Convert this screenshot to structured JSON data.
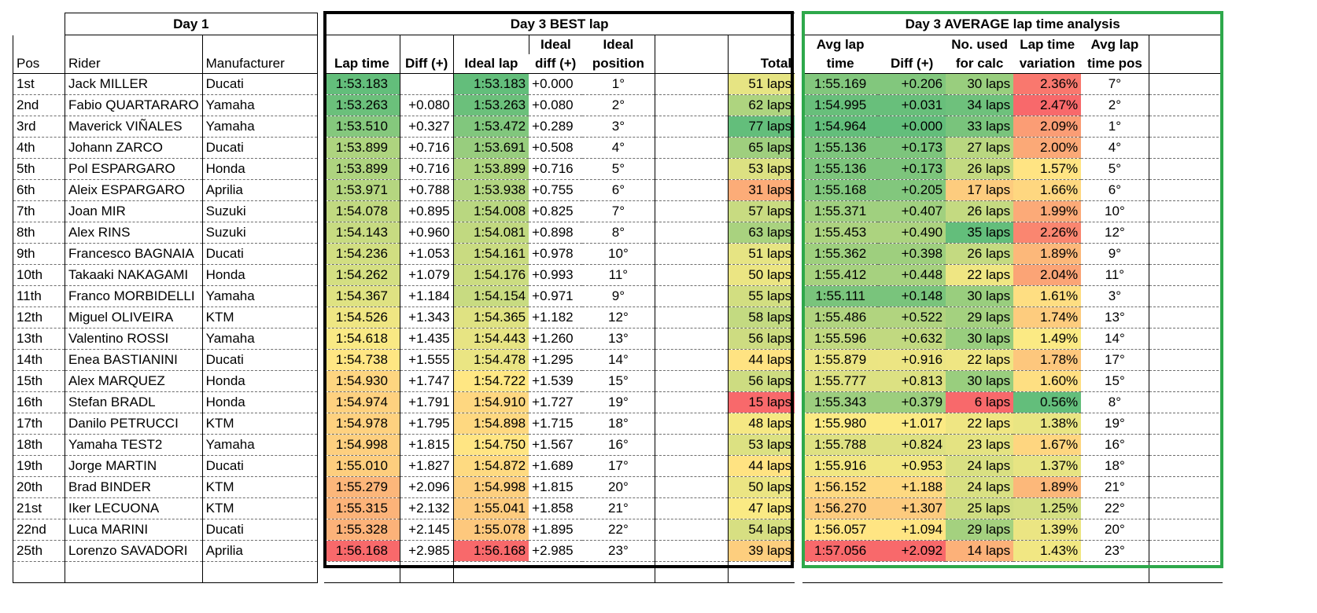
{
  "headers": {
    "day1": "Day 1",
    "best": "Day 3 BEST lap",
    "avg": "Day 3 AVERAGE lap time analysis",
    "pos": "Pos",
    "rider": "Rider",
    "manufacturer": "Manufacturer",
    "lap_time": "Lap time",
    "diff": "Diff (+)",
    "ideal_lap": "Ideal lap",
    "ideal_diff_1": "Ideal",
    "ideal_diff_2": "diff (+)",
    "ideal_pos_1": "Ideal",
    "ideal_pos_2": "position",
    "total": "Total",
    "avg_lap_1": "Avg lap",
    "avg_lap_2": "time",
    "avg_diff": "Diff (+)",
    "used_1": "No. used",
    "used_2": "for calc",
    "var_1": "Lap time",
    "var_2": "variation",
    "avgpos_1": "Avg lap",
    "avgpos_2": "time pos"
  },
  "rows": [
    {
      "pos": "1st",
      "rider": "Jack MILLER",
      "manufacturer": "Ducati",
      "lap_time": "1:53.183",
      "diff": "",
      "ideal_lap": "1:53.183",
      "ideal_diff": "+0.000",
      "ideal_pos": "1°",
      "total": "51 laps",
      "avg_lap": "1:55.169",
      "avg_diff": "+0.206",
      "used": "30 laps",
      "variation": "2.36%",
      "avg_pos": "7°"
    },
    {
      "pos": "2nd",
      "rider": "Fabio QUARTARARO",
      "manufacturer": "Yamaha",
      "lap_time": "1:53.263",
      "diff": "+0.080",
      "ideal_lap": "1:53.263",
      "ideal_diff": "+0.080",
      "ideal_pos": "2°",
      "total": "62 laps",
      "avg_lap": "1:54.995",
      "avg_diff": "+0.031",
      "used": "34 laps",
      "variation": "2.47%",
      "avg_pos": "2°"
    },
    {
      "pos": "3rd",
      "rider": "Maverick VIÑALES",
      "manufacturer": "Yamaha",
      "lap_time": "1:53.510",
      "diff": "+0.327",
      "ideal_lap": "1:53.472",
      "ideal_diff": "+0.289",
      "ideal_pos": "3°",
      "total": "77 laps",
      "avg_lap": "1:54.964",
      "avg_diff": "+0.000",
      "used": "33 laps",
      "variation": "2.09%",
      "avg_pos": "1°"
    },
    {
      "pos": "4th",
      "rider": "Johann ZARCO",
      "manufacturer": "Ducati",
      "lap_time": "1:53.899",
      "diff": "+0.716",
      "ideal_lap": "1:53.691",
      "ideal_diff": "+0.508",
      "ideal_pos": "4°",
      "total": "65 laps",
      "avg_lap": "1:55.136",
      "avg_diff": "+0.173",
      "used": "27 laps",
      "variation": "2.00%",
      "avg_pos": "4°"
    },
    {
      "pos": "5th",
      "rider": "Pol ESPARGARO",
      "manufacturer": "Honda",
      "lap_time": "1:53.899",
      "diff": "+0.716",
      "ideal_lap": "1:53.899",
      "ideal_diff": "+0.716",
      "ideal_pos": "5°",
      "total": "53 laps",
      "avg_lap": "1:55.136",
      "avg_diff": "+0.173",
      "used": "26 laps",
      "variation": "1.57%",
      "avg_pos": "5°"
    },
    {
      "pos": "6th",
      "rider": "Aleix ESPARGARO",
      "manufacturer": "Aprilia",
      "lap_time": "1:53.971",
      "diff": "+0.788",
      "ideal_lap": "1:53.938",
      "ideal_diff": "+0.755",
      "ideal_pos": "6°",
      "total": "31 laps",
      "avg_lap": "1:55.168",
      "avg_diff": "+0.205",
      "used": "17 laps",
      "variation": "1.66%",
      "avg_pos": "6°"
    },
    {
      "pos": "7th",
      "rider": "Joan MIR",
      "manufacturer": "Suzuki",
      "lap_time": "1:54.078",
      "diff": "+0.895",
      "ideal_lap": "1:54.008",
      "ideal_diff": "+0.825",
      "ideal_pos": "7°",
      "total": "57 laps",
      "avg_lap": "1:55.371",
      "avg_diff": "+0.407",
      "used": "26 laps",
      "variation": "1.99%",
      "avg_pos": "10°"
    },
    {
      "pos": "8th",
      "rider": "Alex RINS",
      "manufacturer": "Suzuki",
      "lap_time": "1:54.143",
      "diff": "+0.960",
      "ideal_lap": "1:54.081",
      "ideal_diff": "+0.898",
      "ideal_pos": "8°",
      "total": "63 laps",
      "avg_lap": "1:55.453",
      "avg_diff": "+0.490",
      "used": "35 laps",
      "variation": "2.26%",
      "avg_pos": "12°"
    },
    {
      "pos": "9th",
      "rider": "Francesco BAGNAIA",
      "manufacturer": "Ducati",
      "lap_time": "1:54.236",
      "diff": "+1.053",
      "ideal_lap": "1:54.161",
      "ideal_diff": "+0.978",
      "ideal_pos": "10°",
      "total": "51 laps",
      "avg_lap": "1:55.362",
      "avg_diff": "+0.398",
      "used": "26 laps",
      "variation": "1.89%",
      "avg_pos": "9°"
    },
    {
      "pos": "10th",
      "rider": "Takaaki NAKAGAMI",
      "manufacturer": "Honda",
      "lap_time": "1:54.262",
      "diff": "+1.079",
      "ideal_lap": "1:54.176",
      "ideal_diff": "+0.993",
      "ideal_pos": "11°",
      "total": "50 laps",
      "avg_lap": "1:55.412",
      "avg_diff": "+0.448",
      "used": "22 laps",
      "variation": "2.04%",
      "avg_pos": "11°"
    },
    {
      "pos": "11th",
      "rider": "Franco MORBIDELLI",
      "manufacturer": "Yamaha",
      "lap_time": "1:54.367",
      "diff": "+1.184",
      "ideal_lap": "1:54.154",
      "ideal_diff": "+0.971",
      "ideal_pos": "9°",
      "total": "55 laps",
      "avg_lap": "1:55.111",
      "avg_diff": "+0.148",
      "used": "30 laps",
      "variation": "1.61%",
      "avg_pos": "3°"
    },
    {
      "pos": "12th",
      "rider": "Miguel OLIVEIRA",
      "manufacturer": "KTM",
      "lap_time": "1:54.526",
      "diff": "+1.343",
      "ideal_lap": "1:54.365",
      "ideal_diff": "+1.182",
      "ideal_pos": "12°",
      "total": "58 laps",
      "avg_lap": "1:55.486",
      "avg_diff": "+0.522",
      "used": "29 laps",
      "variation": "1.74%",
      "avg_pos": "13°"
    },
    {
      "pos": "13th",
      "rider": "Valentino ROSSI",
      "manufacturer": "Yamaha",
      "lap_time": "1:54.618",
      "diff": "+1.435",
      "ideal_lap": "1:54.443",
      "ideal_diff": "+1.260",
      "ideal_pos": "13°",
      "total": "56 laps",
      "avg_lap": "1:55.596",
      "avg_diff": "+0.632",
      "used": "30 laps",
      "variation": "1.49%",
      "avg_pos": "14°"
    },
    {
      "pos": "14th",
      "rider": "Enea BASTIANINI",
      "manufacturer": "Ducati",
      "lap_time": "1:54.738",
      "diff": "+1.555",
      "ideal_lap": "1:54.478",
      "ideal_diff": "+1.295",
      "ideal_pos": "14°",
      "total": "44 laps",
      "avg_lap": "1:55.879",
      "avg_diff": "+0.916",
      "used": "22 laps",
      "variation": "1.78%",
      "avg_pos": "17°"
    },
    {
      "pos": "15th",
      "rider": "Alex MARQUEZ",
      "manufacturer": "Honda",
      "lap_time": "1:54.930",
      "diff": "+1.747",
      "ideal_lap": "1:54.722",
      "ideal_diff": "+1.539",
      "ideal_pos": "15°",
      "total": "56 laps",
      "avg_lap": "1:55.777",
      "avg_diff": "+0.813",
      "used": "30 laps",
      "variation": "1.60%",
      "avg_pos": "15°"
    },
    {
      "pos": "16th",
      "rider": "Stefan BRADL",
      "manufacturer": "Honda",
      "lap_time": "1:54.974",
      "diff": "+1.791",
      "ideal_lap": "1:54.910",
      "ideal_diff": "+1.727",
      "ideal_pos": "19°",
      "total": "15 laps",
      "avg_lap": "1:55.343",
      "avg_diff": "+0.379",
      "used": "6 laps",
      "variation": "0.56%",
      "avg_pos": "8°"
    },
    {
      "pos": "17th",
      "rider": "Danilo PETRUCCI",
      "manufacturer": "KTM",
      "lap_time": "1:54.978",
      "diff": "+1.795",
      "ideal_lap": "1:54.898",
      "ideal_diff": "+1.715",
      "ideal_pos": "18°",
      "total": "48 laps",
      "avg_lap": "1:55.980",
      "avg_diff": "+1.017",
      "used": "22 laps",
      "variation": "1.38%",
      "avg_pos": "19°"
    },
    {
      "pos": "18th",
      "rider": "Yamaha TEST2",
      "manufacturer": "Yamaha",
      "lap_time": "1:54.998",
      "diff": "+1.815",
      "ideal_lap": "1:54.750",
      "ideal_diff": "+1.567",
      "ideal_pos": "16°",
      "total": "53 laps",
      "avg_lap": "1:55.788",
      "avg_diff": "+0.824",
      "used": "23 laps",
      "variation": "1.67%",
      "avg_pos": "16°"
    },
    {
      "pos": "19th",
      "rider": "Jorge MARTIN",
      "manufacturer": "Ducati",
      "lap_time": "1:55.010",
      "diff": "+1.827",
      "ideal_lap": "1:54.872",
      "ideal_diff": "+1.689",
      "ideal_pos": "17°",
      "total": "44 laps",
      "avg_lap": "1:55.916",
      "avg_diff": "+0.953",
      "used": "24 laps",
      "variation": "1.37%",
      "avg_pos": "18°"
    },
    {
      "pos": "20th",
      "rider": "Brad BINDER",
      "manufacturer": "KTM",
      "lap_time": "1:55.279",
      "diff": "+2.096",
      "ideal_lap": "1:54.998",
      "ideal_diff": "+1.815",
      "ideal_pos": "20°",
      "total": "50 laps",
      "avg_lap": "1:56.152",
      "avg_diff": "+1.188",
      "used": "24 laps",
      "variation": "1.89%",
      "avg_pos": "21°"
    },
    {
      "pos": "21st",
      "rider": "Iker LECUONA",
      "manufacturer": "KTM",
      "lap_time": "1:55.315",
      "diff": "+2.132",
      "ideal_lap": "1:55.041",
      "ideal_diff": "+1.858",
      "ideal_pos": "21°",
      "total": "47 laps",
      "avg_lap": "1:56.270",
      "avg_diff": "+1.307",
      "used": "25 laps",
      "variation": "1.25%",
      "avg_pos": "22°"
    },
    {
      "pos": "22nd",
      "rider": "Luca MARINI",
      "manufacturer": "Ducati",
      "lap_time": "1:55.328",
      "diff": "+2.145",
      "ideal_lap": "1:55.078",
      "ideal_diff": "+1.895",
      "ideal_pos": "22°",
      "total": "54 laps",
      "avg_lap": "1:56.057",
      "avg_diff": "+1.094",
      "used": "29 laps",
      "variation": "1.39%",
      "avg_pos": "20°"
    },
    {
      "pos": "25th",
      "rider": "Lorenzo SAVADORI",
      "manufacturer": "Aprilia",
      "lap_time": "1:56.168",
      "diff": "+2.985",
      "ideal_lap": "1:56.168",
      "ideal_diff": "+2.985",
      "ideal_pos": "23°",
      "total": "39 laps",
      "avg_lap": "1:57.056",
      "avg_diff": "+2.092",
      "used": "14 laps",
      "variation": "1.43%",
      "avg_pos": "23°"
    }
  ],
  "colors": {
    "frame_best": "#000000",
    "frame_avg": "#2ea84b",
    "scale_good": "#63be7b",
    "scale_mid": "#ffeb84",
    "scale_bad": "#f8696b"
  }
}
